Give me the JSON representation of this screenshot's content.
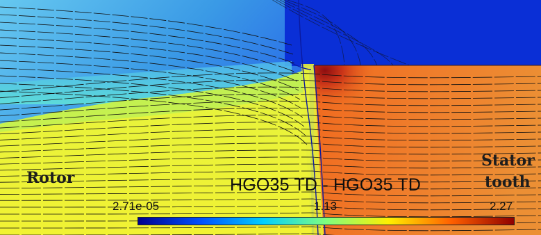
{
  "labels": {
    "rotor": "Rotor",
    "stator_line1": "Stator",
    "stator_line2": "tooth",
    "material": "HGO35 TD - HGO35 TD"
  },
  "colorbar": {
    "min": "2.71e-05",
    "mid": "1.13",
    "max": "2.27",
    "stops": [
      "#00008f",
      "#0050ff",
      "#00cfff",
      "#7fff7f",
      "#ffef00",
      "#ff6000",
      "#8f0000"
    ]
  },
  "colors": {
    "air_dark": "#0a2fd6",
    "air_mid": "#2f7fe6",
    "rotor_fill": "#e6f037",
    "stator_fill": "#ee7b2c",
    "stator_hot": "#b3201a",
    "flux_line": "#111111",
    "boundary": "#0b1a9e"
  }
}
